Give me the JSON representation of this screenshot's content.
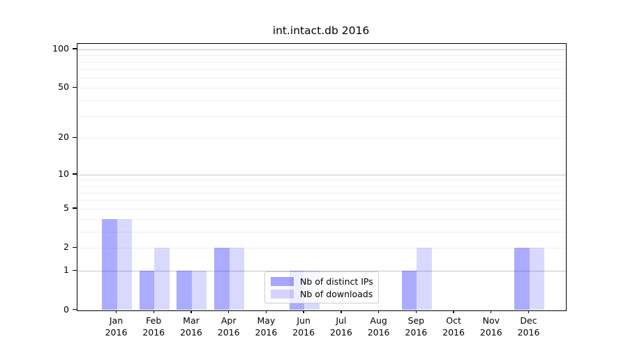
{
  "chart_data": {
    "type": "bar",
    "title": "int.intact.db 2016",
    "categories": [
      "Jan 2016",
      "Feb 2016",
      "Mar 2016",
      "Apr 2016",
      "May 2016",
      "Jun 2016",
      "Jul 2016",
      "Aug 2016",
      "Sep 2016",
      "Oct 2016",
      "Nov 2016",
      "Dec 2016"
    ],
    "series": [
      {
        "name": "Nb of distinct IPs",
        "color": "#0000ff",
        "alpha": 0.33,
        "values": [
          4,
          1,
          1,
          2,
          0,
          1,
          0,
          0,
          1,
          0,
          0,
          2
        ]
      },
      {
        "name": "Nb of downloads",
        "color": "#0000ff",
        "alpha": 0.15,
        "values": [
          4,
          2,
          1,
          2,
          0,
          1,
          0,
          0,
          2,
          0,
          0,
          2
        ]
      }
    ],
    "xlabel": "",
    "ylabel": "",
    "yscale": "log1p",
    "ylim": [
      0,
      110
    ],
    "yticks": [
      0,
      1,
      2,
      5,
      10,
      20,
      50,
      100
    ],
    "major_grid_values": [
      1,
      10,
      100
    ],
    "minor_grid_values": [
      2,
      3,
      4,
      5,
      6,
      7,
      8,
      9,
      20,
      30,
      40,
      50,
      60,
      70,
      80,
      90
    ],
    "grid": true,
    "legend_position": "lower center"
  },
  "colors": {
    "major_grid": "#c6c6c6",
    "minor_grid": "#f0f0f0",
    "axis": "#000000",
    "legend_border": "#cccccc"
  }
}
